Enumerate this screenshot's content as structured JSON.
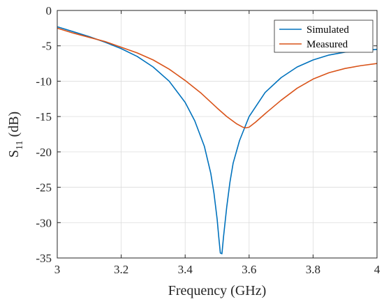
{
  "chart_data": {
    "type": "line",
    "xlabel": "Frequency (GHz)",
    "ylabel_main": "S",
    "ylabel_sub": "11",
    "ylabel_unit": " (dB)",
    "xlim": [
      3,
      4
    ],
    "ylim": [
      -35,
      0
    ],
    "xticks": [
      3,
      3.2,
      3.4,
      3.6,
      3.8,
      4
    ],
    "yticks": [
      0,
      -5,
      -10,
      -15,
      -20,
      -25,
      -30,
      -35
    ],
    "xtick_labels": [
      "3",
      "3.2",
      "3.4",
      "3.6",
      "3.8",
      "4"
    ],
    "ytick_labels": [
      "0",
      "-5",
      "-10",
      "-15",
      "-20",
      "-25",
      "-30",
      "-35"
    ],
    "grid": true,
    "legend_position": "top-right",
    "series": [
      {
        "name": "Simulated",
        "color": "#0072BD",
        "x": [
          3.0,
          3.05,
          3.1,
          3.15,
          3.2,
          3.25,
          3.3,
          3.35,
          3.4,
          3.43,
          3.46,
          3.48,
          3.49,
          3.5,
          3.505,
          3.51,
          3.515,
          3.52,
          3.53,
          3.54,
          3.55,
          3.57,
          3.6,
          3.65,
          3.7,
          3.75,
          3.8,
          3.85,
          3.9,
          3.95,
          4.0
        ],
        "y": [
          -2.3,
          -3.0,
          -3.7,
          -4.5,
          -5.4,
          -6.5,
          -8.0,
          -10.0,
          -13.0,
          -15.6,
          -19.2,
          -23.0,
          -25.8,
          -29.5,
          -32.0,
          -34.3,
          -34.4,
          -32.0,
          -27.8,
          -24.3,
          -21.6,
          -18.4,
          -15.0,
          -11.6,
          -9.5,
          -8.0,
          -7.0,
          -6.3,
          -5.9,
          -5.7,
          -5.5
        ]
      },
      {
        "name": "Measured",
        "color": "#D95319",
        "x": [
          3.0,
          3.05,
          3.1,
          3.15,
          3.2,
          3.25,
          3.3,
          3.35,
          3.4,
          3.45,
          3.5,
          3.53,
          3.56,
          3.58,
          3.59,
          3.6,
          3.62,
          3.65,
          3.7,
          3.75,
          3.8,
          3.85,
          3.9,
          3.95,
          4.0
        ],
        "y": [
          -2.5,
          -3.2,
          -3.8,
          -4.4,
          -5.2,
          -6.0,
          -7.0,
          -8.3,
          -9.9,
          -11.7,
          -13.8,
          -15.0,
          -16.0,
          -16.5,
          -16.6,
          -16.5,
          -15.8,
          -14.6,
          -12.7,
          -11.0,
          -9.7,
          -8.8,
          -8.2,
          -7.8,
          -7.5
        ]
      }
    ]
  }
}
